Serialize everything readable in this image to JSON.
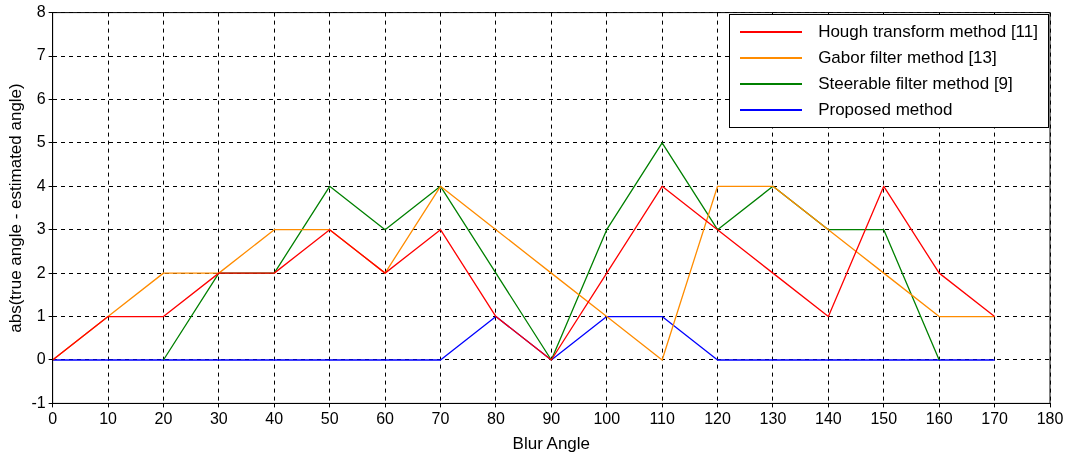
{
  "chart_data": {
    "type": "line",
    "xlabel": "Blur Angle",
    "ylabel": "abs(true angle - estimated angle)",
    "x": [
      0,
      10,
      20,
      30,
      40,
      50,
      60,
      70,
      80,
      90,
      100,
      110,
      120,
      130,
      140,
      150,
      160,
      170
    ],
    "series": [
      {
        "name": "Hough transform method [11]",
        "color": "#ff0000",
        "values": [
          0,
          1,
          1,
          2,
          2,
          3,
          2,
          3,
          1,
          0,
          2,
          4,
          3,
          2,
          1,
          4,
          2,
          1
        ]
      },
      {
        "name": "Gabor filter method [13]",
        "color": "#ff8c00",
        "values": [
          0,
          1,
          2,
          2,
          3,
          3,
          2,
          4,
          3,
          2,
          1,
          0,
          4,
          4,
          3,
          2,
          1,
          1
        ]
      },
      {
        "name": "Steerable filter method [9]",
        "color": "#008000",
        "values": [
          null,
          null,
          0,
          2,
          2,
          4,
          3,
          4,
          2,
          0,
          3,
          5,
          3,
          4,
          3,
          3,
          0,
          null
        ]
      },
      {
        "name": "Proposed method",
        "color": "#0000ff",
        "values": [
          0,
          0,
          0,
          0,
          0,
          0,
          0,
          0,
          1,
          0,
          1,
          1,
          0,
          0,
          0,
          0,
          0,
          0
        ]
      }
    ],
    "xlim": [
      0,
      180
    ],
    "xticks": [
      0,
      10,
      20,
      30,
      40,
      50,
      60,
      70,
      80,
      90,
      100,
      110,
      120,
      130,
      140,
      150,
      160,
      170,
      180
    ],
    "ylim": [
      -1,
      8
    ],
    "yticks": [
      -1,
      0,
      1,
      2,
      3,
      4,
      5,
      6,
      7,
      8
    ],
    "grid": true,
    "legend": "top right",
    "marker": "none",
    "line_style": "solid"
  }
}
